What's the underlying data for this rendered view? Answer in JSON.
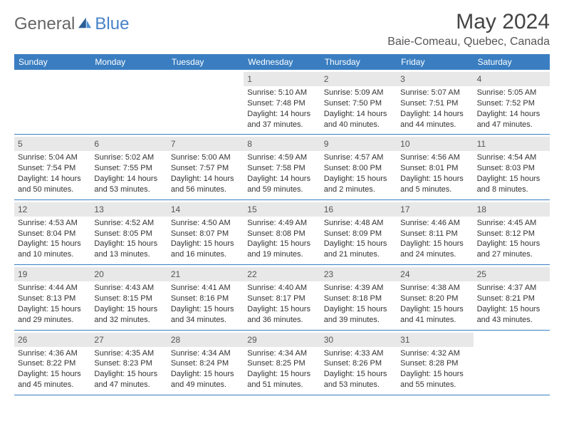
{
  "brand": {
    "general": "General",
    "blue": "Blue"
  },
  "title": "May 2024",
  "location": "Baie-Comeau, Quebec, Canada",
  "colors": {
    "header_bg": "#3a7ec1",
    "header_text": "#ffffff",
    "daynum_bg": "#e8e8e8",
    "week_border": "#3a7ec1",
    "brand_blue": "#4682c8",
    "brand_gray": "#666666",
    "body_text": "#333333"
  },
  "day_names": [
    "Sunday",
    "Monday",
    "Tuesday",
    "Wednesday",
    "Thursday",
    "Friday",
    "Saturday"
  ],
  "weeks": [
    [
      {
        "n": "",
        "sr": "",
        "ss": "",
        "dh": "",
        "dm": ""
      },
      {
        "n": "",
        "sr": "",
        "ss": "",
        "dh": "",
        "dm": ""
      },
      {
        "n": "",
        "sr": "",
        "ss": "",
        "dh": "",
        "dm": ""
      },
      {
        "n": "1",
        "sr": "5:10 AM",
        "ss": "7:48 PM",
        "dh": "14",
        "dm": "37"
      },
      {
        "n": "2",
        "sr": "5:09 AM",
        "ss": "7:50 PM",
        "dh": "14",
        "dm": "40"
      },
      {
        "n": "3",
        "sr": "5:07 AM",
        "ss": "7:51 PM",
        "dh": "14",
        "dm": "44"
      },
      {
        "n": "4",
        "sr": "5:05 AM",
        "ss": "7:52 PM",
        "dh": "14",
        "dm": "47"
      }
    ],
    [
      {
        "n": "5",
        "sr": "5:04 AM",
        "ss": "7:54 PM",
        "dh": "14",
        "dm": "50"
      },
      {
        "n": "6",
        "sr": "5:02 AM",
        "ss": "7:55 PM",
        "dh": "14",
        "dm": "53"
      },
      {
        "n": "7",
        "sr": "5:00 AM",
        "ss": "7:57 PM",
        "dh": "14",
        "dm": "56"
      },
      {
        "n": "8",
        "sr": "4:59 AM",
        "ss": "7:58 PM",
        "dh": "14",
        "dm": "59"
      },
      {
        "n": "9",
        "sr": "4:57 AM",
        "ss": "8:00 PM",
        "dh": "15",
        "dm": "2"
      },
      {
        "n": "10",
        "sr": "4:56 AM",
        "ss": "8:01 PM",
        "dh": "15",
        "dm": "5"
      },
      {
        "n": "11",
        "sr": "4:54 AM",
        "ss": "8:03 PM",
        "dh": "15",
        "dm": "8"
      }
    ],
    [
      {
        "n": "12",
        "sr": "4:53 AM",
        "ss": "8:04 PM",
        "dh": "15",
        "dm": "10"
      },
      {
        "n": "13",
        "sr": "4:52 AM",
        "ss": "8:05 PM",
        "dh": "15",
        "dm": "13"
      },
      {
        "n": "14",
        "sr": "4:50 AM",
        "ss": "8:07 PM",
        "dh": "15",
        "dm": "16"
      },
      {
        "n": "15",
        "sr": "4:49 AM",
        "ss": "8:08 PM",
        "dh": "15",
        "dm": "19"
      },
      {
        "n": "16",
        "sr": "4:48 AM",
        "ss": "8:09 PM",
        "dh": "15",
        "dm": "21"
      },
      {
        "n": "17",
        "sr": "4:46 AM",
        "ss": "8:11 PM",
        "dh": "15",
        "dm": "24"
      },
      {
        "n": "18",
        "sr": "4:45 AM",
        "ss": "8:12 PM",
        "dh": "15",
        "dm": "27"
      }
    ],
    [
      {
        "n": "19",
        "sr": "4:44 AM",
        "ss": "8:13 PM",
        "dh": "15",
        "dm": "29"
      },
      {
        "n": "20",
        "sr": "4:43 AM",
        "ss": "8:15 PM",
        "dh": "15",
        "dm": "32"
      },
      {
        "n": "21",
        "sr": "4:41 AM",
        "ss": "8:16 PM",
        "dh": "15",
        "dm": "34"
      },
      {
        "n": "22",
        "sr": "4:40 AM",
        "ss": "8:17 PM",
        "dh": "15",
        "dm": "36"
      },
      {
        "n": "23",
        "sr": "4:39 AM",
        "ss": "8:18 PM",
        "dh": "15",
        "dm": "39"
      },
      {
        "n": "24",
        "sr": "4:38 AM",
        "ss": "8:20 PM",
        "dh": "15",
        "dm": "41"
      },
      {
        "n": "25",
        "sr": "4:37 AM",
        "ss": "8:21 PM",
        "dh": "15",
        "dm": "43"
      }
    ],
    [
      {
        "n": "26",
        "sr": "4:36 AM",
        "ss": "8:22 PM",
        "dh": "15",
        "dm": "45"
      },
      {
        "n": "27",
        "sr": "4:35 AM",
        "ss": "8:23 PM",
        "dh": "15",
        "dm": "47"
      },
      {
        "n": "28",
        "sr": "4:34 AM",
        "ss": "8:24 PM",
        "dh": "15",
        "dm": "49"
      },
      {
        "n": "29",
        "sr": "4:34 AM",
        "ss": "8:25 PM",
        "dh": "15",
        "dm": "51"
      },
      {
        "n": "30",
        "sr": "4:33 AM",
        "ss": "8:26 PM",
        "dh": "15",
        "dm": "53"
      },
      {
        "n": "31",
        "sr": "4:32 AM",
        "ss": "8:28 PM",
        "dh": "15",
        "dm": "55"
      },
      {
        "n": "",
        "sr": "",
        "ss": "",
        "dh": "",
        "dm": ""
      }
    ]
  ],
  "labels": {
    "sunrise": "Sunrise:",
    "sunset": "Sunset:",
    "daylight": "Daylight:",
    "hours": "hours",
    "and": "and",
    "minutes": "minutes."
  }
}
